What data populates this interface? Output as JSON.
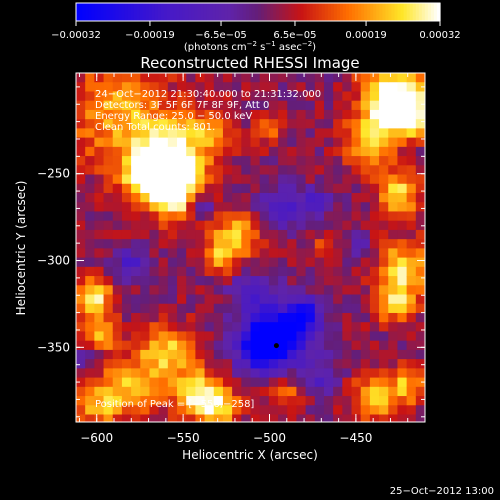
{
  "chart_data": {
    "type": "heatmap",
    "title": "Reconstructed RHESSI Image",
    "xlabel": "Heliocentric X (arcsec)",
    "ylabel": "Heliocentric Y (arcsec)",
    "xlim": [
      -612,
      -410
    ],
    "ylim": [
      -393,
      -192
    ],
    "x_ticks": [
      -600,
      -550,
      -500,
      -450
    ],
    "x_tick_labels": [
      "−600",
      "−550",
      "−500",
      "−450"
    ],
    "y_ticks": [
      -250,
      -300,
      -350
    ],
    "y_tick_labels": [
      "−250",
      "−300",
      "−350"
    ],
    "colorbar": {
      "range": [
        -0.00032,
        0.00032
      ],
      "ticks": [
        -0.00032,
        -0.00019,
        -6.5e-05,
        6.5e-05,
        0.00019,
        0.00032
      ],
      "tick_labels": [
        "−0.00032",
        "−0.00019",
        "−6.5e−05",
        "6.5e−05",
        "0.00019",
        "0.00032"
      ],
      "unit_label": {
        "main": "(photons cm",
        "exp1": "−2",
        "mid1": " s",
        "exp2": "−1",
        "mid2": " asec",
        "exp3": "−2",
        "end": ")"
      },
      "colormap": "blue-purple-red-yellow-white"
    },
    "annotations": [
      "24−Oct−2012 21:30:40.000 to 21:31:32.000",
      "Detectors: 3F 5F 6F 7F 8F 9F, Att 0",
      "Energy Range: 25.0 − 50.0 keV",
      "Clean     Total counts: 801.",
      "Position of Peak = [−556,−258]"
    ],
    "peak": [
      -556,
      -258
    ],
    "blobs": [
      {
        "x": -588,
        "y": -215,
        "r": 22,
        "a": 0.55
      },
      {
        "x": -560,
        "y": -242,
        "r": 14,
        "a": 1.0
      },
      {
        "x": -555,
        "y": -260,
        "r": 11,
        "a": 1.0
      },
      {
        "x": -572,
        "y": -252,
        "r": 9,
        "a": 0.55
      },
      {
        "x": -535,
        "y": -225,
        "r": 10,
        "a": 0.45
      },
      {
        "x": -520,
        "y": -287,
        "r": 9,
        "a": 0.75
      },
      {
        "x": -530,
        "y": -300,
        "r": 6,
        "a": 0.45
      },
      {
        "x": -430,
        "y": -205,
        "r": 12,
        "a": 1.0
      },
      {
        "x": -420,
        "y": -215,
        "r": 9,
        "a": 1.0
      },
      {
        "x": -442,
        "y": -232,
        "r": 10,
        "a": 0.7
      },
      {
        "x": -425,
        "y": -262,
        "r": 9,
        "a": 0.7
      },
      {
        "x": -422,
        "y": -305,
        "r": 11,
        "a": 0.75
      },
      {
        "x": -428,
        "y": -325,
        "r": 8,
        "a": 0.6
      },
      {
        "x": -602,
        "y": -322,
        "r": 8,
        "a": 0.8
      },
      {
        "x": -598,
        "y": -343,
        "r": 7,
        "a": 0.55
      },
      {
        "x": -560,
        "y": -352,
        "r": 11,
        "a": 0.65
      },
      {
        "x": -580,
        "y": -372,
        "r": 12,
        "a": 0.55
      },
      {
        "x": -600,
        "y": -383,
        "r": 10,
        "a": 0.55
      },
      {
        "x": -542,
        "y": -377,
        "r": 10,
        "a": 0.85
      },
      {
        "x": -528,
        "y": -385,
        "r": 8,
        "a": 0.6
      },
      {
        "x": -440,
        "y": -380,
        "r": 10,
        "a": 0.6
      },
      {
        "x": -420,
        "y": -372,
        "r": 8,
        "a": 0.55
      },
      {
        "x": -492,
        "y": -375,
        "r": 7,
        "a": 0.45
      },
      {
        "x": -500,
        "y": -225,
        "r": 6,
        "a": 0.35
      },
      {
        "x": -468,
        "y": -290,
        "r": 5,
        "a": 0.3
      },
      {
        "x": -478,
        "y": -340,
        "r": 4,
        "a": 0.25
      },
      {
        "x": -495,
        "y": -343,
        "r": 14,
        "a": -1.0
      },
      {
        "x": -505,
        "y": -350,
        "r": 9,
        "a": -0.8
      },
      {
        "x": -482,
        "y": -335,
        "r": 7,
        "a": -0.6
      },
      {
        "x": -493,
        "y": -270,
        "r": 8,
        "a": -0.55
      },
      {
        "x": -473,
        "y": -267,
        "r": 6,
        "a": -0.5
      },
      {
        "x": -540,
        "y": -268,
        "r": 6,
        "a": -0.45
      },
      {
        "x": -580,
        "y": -302,
        "r": 6,
        "a": -0.5
      },
      {
        "x": -512,
        "y": -318,
        "r": 7,
        "a": -0.45
      },
      {
        "x": -478,
        "y": -330,
        "r": 5,
        "a": -0.4
      },
      {
        "x": -448,
        "y": -293,
        "r": 5,
        "a": -0.4
      },
      {
        "x": -606,
        "y": -357,
        "r": 6,
        "a": -0.3
      },
      {
        "x": -468,
        "y": -368,
        "r": 7,
        "a": -0.4
      }
    ],
    "peak_marker": [
      -496,
      -349
    ]
  },
  "footer_timestamp": "25−Oct−2012 13:00"
}
